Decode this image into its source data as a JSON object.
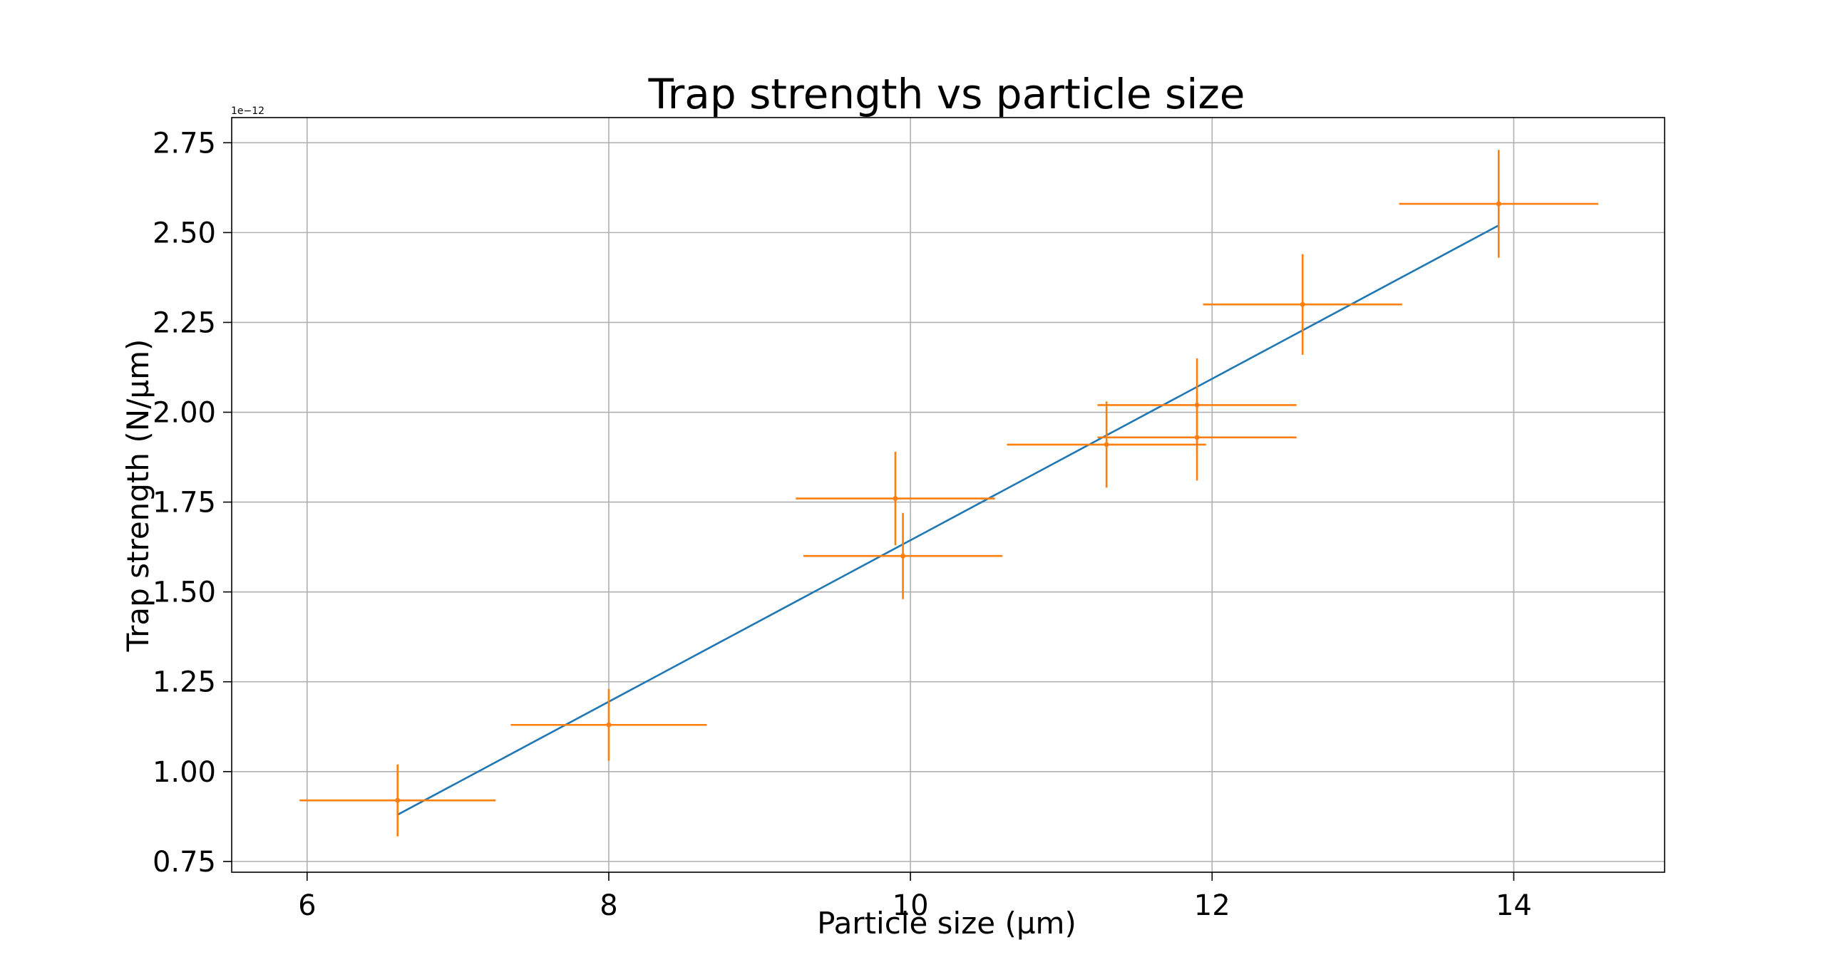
{
  "chart_data": {
    "type": "scatter",
    "title": "Trap strength vs particle size",
    "xlabel": "Particle size (µm)",
    "ylabel": "Trap strength (N/µm)",
    "y_offset_label": "1e−12",
    "xlim": [
      5.5,
      15.0
    ],
    "ylim": [
      0.72,
      2.82
    ],
    "x_ticks": [
      6,
      8,
      10,
      12,
      14
    ],
    "x_tick_labels": [
      "6",
      "8",
      "10",
      "12",
      "14"
    ],
    "y_ticks": [
      0.75,
      1.0,
      1.25,
      1.5,
      1.75,
      2.0,
      2.25,
      2.5,
      2.75
    ],
    "y_tick_labels": [
      "0.75",
      "1.00",
      "1.25",
      "1.50",
      "1.75",
      "2.00",
      "2.25",
      "2.50",
      "2.75"
    ],
    "grid": true,
    "series": [
      {
        "type": "errorbar",
        "color": "#ff7f0e",
        "points": [
          {
            "x": 6.6,
            "y": 0.92,
            "xerr": 0.65,
            "yerr": 0.1
          },
          {
            "x": 8.0,
            "y": 1.13,
            "xerr": 0.65,
            "yerr": 0.1
          },
          {
            "x": 9.9,
            "y": 1.76,
            "xerr": 0.66,
            "yerr": 0.13
          },
          {
            "x": 9.95,
            "y": 1.6,
            "xerr": 0.66,
            "yerr": 0.12
          },
          {
            "x": 11.3,
            "y": 1.91,
            "xerr": 0.66,
            "yerr": 0.12
          },
          {
            "x": 11.9,
            "y": 2.02,
            "xerr": 0.66,
            "yerr": 0.13
          },
          {
            "x": 11.9,
            "y": 1.93,
            "xerr": 0.66,
            "yerr": 0.12
          },
          {
            "x": 12.6,
            "y": 2.3,
            "xerr": 0.66,
            "yerr": 0.14
          },
          {
            "x": 13.9,
            "y": 2.58,
            "xerr": 0.66,
            "yerr": 0.15
          }
        ]
      },
      {
        "type": "line",
        "color": "#1f77b4",
        "x": [
          6.6,
          13.9
        ],
        "y": [
          0.88,
          2.52
        ]
      }
    ]
  }
}
